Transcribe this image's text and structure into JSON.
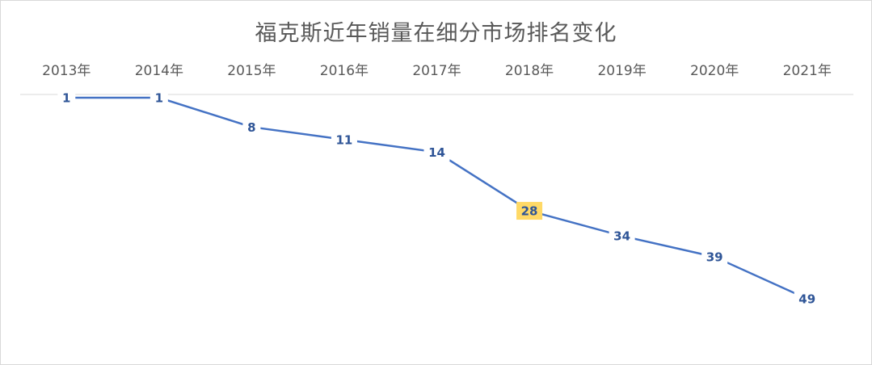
{
  "chart_data": {
    "type": "line",
    "title": "福克斯近年销量在细分市场排名变化",
    "categories": [
      "2013年",
      "2014年",
      "2015年",
      "2016年",
      "2017年",
      "2018年",
      "2019年",
      "2020年",
      "2021年"
    ],
    "values": [
      1,
      1,
      8,
      11,
      14,
      28,
      34,
      39,
      49
    ],
    "y_axis_reversed": true,
    "x_axis_position": "top",
    "grid": false,
    "legend": "none",
    "highlight": {
      "category": "2018年",
      "color": "#ffd966"
    },
    "colors": {
      "line": "#4472c4",
      "label": "#2f5597",
      "axis": "#d9d9d9",
      "text": "#595959"
    }
  }
}
